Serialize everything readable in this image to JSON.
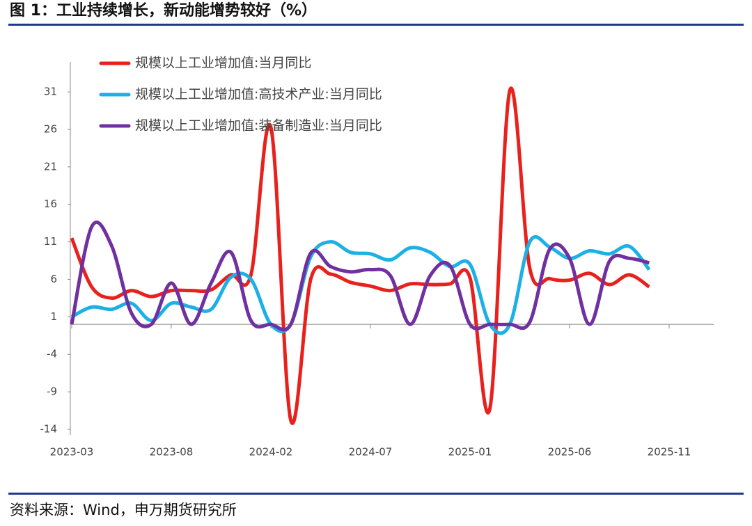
{
  "chart_data": {
    "type": "line",
    "title": "图 1：工业持续增长，新动能增势较好（%）",
    "source": "资料来源：Wind，申万期货研究所",
    "categories": [
      "2023-03",
      null,
      null,
      null,
      null,
      "2023-08",
      null,
      null,
      null,
      null,
      "2024-02",
      null,
      null,
      null,
      null,
      "2024-07",
      null,
      null,
      null,
      null,
      "2025-01",
      null,
      null,
      null,
      null,
      "2025-06",
      null,
      null,
      null,
      null,
      "2025-11"
    ],
    "series": [
      {
        "name": "规模以上工业增加值:当月同比",
        "color": "#e8211d",
        "values": [
          11.5,
          5.0,
          3.5,
          4.5,
          3.7,
          4.5,
          4.5,
          4.6,
          6.6,
          6.6,
          26.3,
          -12.8,
          6.0,
          6.7,
          5.6,
          5.1,
          4.5,
          5.4,
          5.3,
          5.4,
          6.2,
          -11.2,
          31.2,
          7.5,
          6.1,
          5.9,
          6.8,
          5.3,
          6.6,
          5.0,
          null
        ]
      },
      {
        "name": "规模以上工业增加值:高技术产业:当月同比",
        "color": "#1cb0e6",
        "values": [
          1.0,
          2.3,
          2.0,
          2.8,
          0.5,
          2.8,
          2.3,
          2.0,
          6.3,
          6.0,
          0,
          0,
          9.0,
          11.0,
          9.6,
          9.4,
          8.6,
          10.2,
          9.6,
          7.7,
          8.0,
          0,
          0,
          11.0,
          10.3,
          8.8,
          9.8,
          9.4,
          10.4,
          7.3,
          null
        ]
      },
      {
        "name": "规模以上工业增加值:装备制造业:当月同比",
        "color": "#7030a0",
        "values": [
          0,
          13.0,
          10.5,
          1.5,
          0,
          5.5,
          0,
          5.5,
          9.6,
          0.5,
          0,
          0,
          9.5,
          7.7,
          7.0,
          7.3,
          6.5,
          0,
          6.5,
          7.8,
          0,
          0,
          0,
          0.3,
          10.0,
          8.8,
          0,
          8.4,
          8.8,
          8.2,
          null
        ]
      }
    ],
    "ylim": [
      -14,
      35
    ],
    "yticks": [
      -14,
      -9,
      -4,
      1,
      6,
      11,
      16,
      21,
      26,
      31
    ]
  }
}
